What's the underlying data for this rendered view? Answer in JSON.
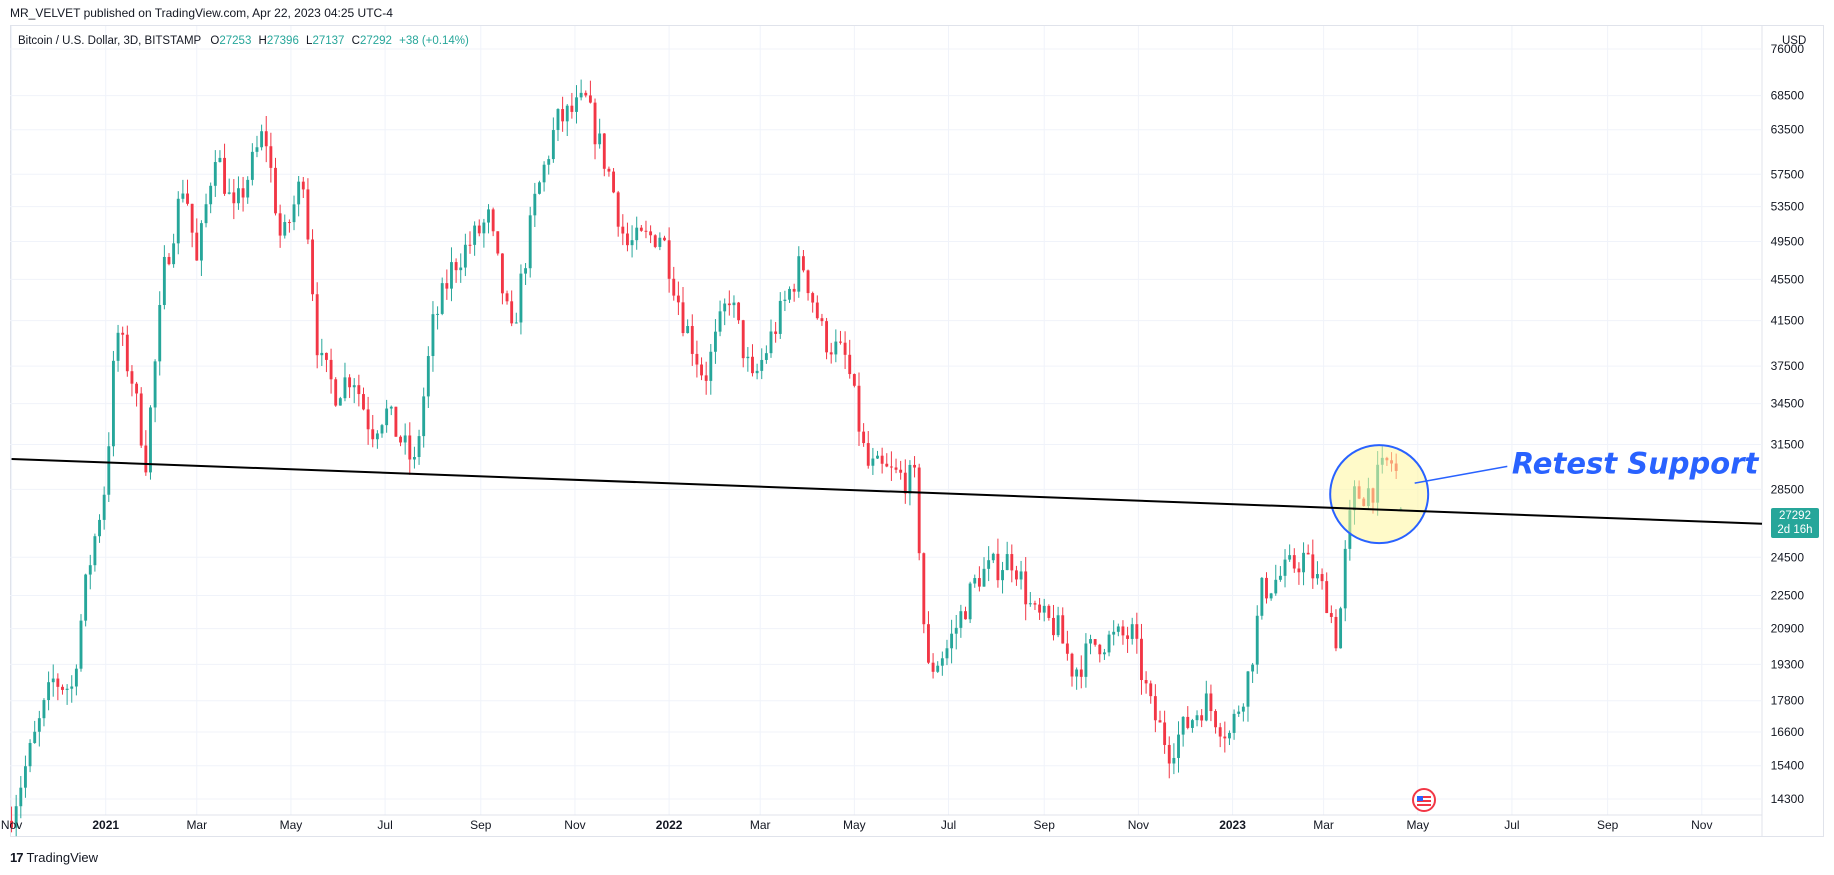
{
  "header": {
    "publish_line": "MR_VELVET published on TradingView.com, Apr 22, 2023 04:25 UTC-4"
  },
  "legend": {
    "symbol": "Bitcoin / U.S. Dollar, 3D, BITSTAMP",
    "o_label": "O",
    "o_value": "27253",
    "h_label": "H",
    "h_value": "27396",
    "l_label": "L",
    "l_value": "27137",
    "c_label": "C",
    "c_value": "27292",
    "change": "+38 (+0.14%)"
  },
  "currency": "USD",
  "price_tag": {
    "price": "27292",
    "countdown": "2d 16h"
  },
  "annotation": {
    "text": "Retest Support"
  },
  "brand": {
    "name": "TradingView",
    "logo_glyph": "17"
  },
  "colors": {
    "up": "#26a69a",
    "down": "#f23645",
    "annotation": "#2962ff",
    "highlight": "#fff59d",
    "support_line": "#000000"
  },
  "chart_data": {
    "type": "candlestick",
    "title": "Bitcoin / U.S. Dollar, 3D, BITSTAMP",
    "ylabel": "USD",
    "y_scale": "log",
    "ylim": [
      13800,
      80000
    ],
    "y_ticks": [
      76000,
      68500,
      63500,
      57500,
      53500,
      49500,
      45500,
      41500,
      37500,
      34500,
      31500,
      28500,
      24500,
      22500,
      20900,
      19300,
      17800,
      16600,
      15400,
      14300
    ],
    "x_ticks": [
      {
        "label": "Nov",
        "date": "2020-11-01"
      },
      {
        "label": "2021",
        "date": "2021-01-01",
        "bold": true
      },
      {
        "label": "Mar",
        "date": "2021-03-01"
      },
      {
        "label": "May",
        "date": "2021-05-01"
      },
      {
        "label": "Jul",
        "date": "2021-07-01"
      },
      {
        "label": "Sep",
        "date": "2021-09-01"
      },
      {
        "label": "Nov",
        "date": "2021-11-01"
      },
      {
        "label": "2022",
        "date": "2022-01-01",
        "bold": true
      },
      {
        "label": "Mar",
        "date": "2022-03-01"
      },
      {
        "label": "May",
        "date": "2022-05-01"
      },
      {
        "label": "Jul",
        "date": "2022-07-01"
      },
      {
        "label": "Sep",
        "date": "2022-09-01"
      },
      {
        "label": "Nov",
        "date": "2022-11-01"
      },
      {
        "label": "2023",
        "date": "2023-01-01",
        "bold": true
      },
      {
        "label": "Mar",
        "date": "2023-03-01"
      },
      {
        "label": "May",
        "date": "2023-05-01"
      },
      {
        "label": "Jul",
        "date": "2023-07-01"
      },
      {
        "label": "Sep",
        "date": "2023-09-01"
      },
      {
        "label": "Nov",
        "date": "2023-11-01"
      }
    ],
    "xlim": [
      "2020-10-31",
      "2023-12-10"
    ],
    "last_candle": {
      "date": "2023-04-21",
      "open": 27253,
      "high": 27396,
      "low": 27137,
      "close": 27292
    },
    "close_path": [
      [
        "2020-11-01",
        13900
      ],
      [
        "2020-11-15",
        16200
      ],
      [
        "2020-11-28",
        18600
      ],
      [
        "2020-12-10",
        18300
      ],
      [
        "2020-12-20",
        23500
      ],
      [
        "2021-01-01",
        29000
      ],
      [
        "2021-01-08",
        40800
      ],
      [
        "2021-01-18",
        36500
      ],
      [
        "2021-01-27",
        30500
      ],
      [
        "2021-02-08",
        46500
      ],
      [
        "2021-02-21",
        57000
      ],
      [
        "2021-03-01",
        47000
      ],
      [
        "2021-03-13",
        61000
      ],
      [
        "2021-03-25",
        52500
      ],
      [
        "2021-04-14",
        63500
      ],
      [
        "2021-04-25",
        49000
      ],
      [
        "2021-05-09",
        57500
      ],
      [
        "2021-05-19",
        38000
      ],
      [
        "2021-05-30",
        35500
      ],
      [
        "2021-06-10",
        37000
      ],
      [
        "2021-06-22",
        32500
      ],
      [
        "2021-07-01",
        34000
      ],
      [
        "2021-07-20",
        30000
      ],
      [
        "2021-08-01",
        41000
      ],
      [
        "2021-08-14",
        47000
      ],
      [
        "2021-09-06",
        52000
      ],
      [
        "2021-09-21",
        40000
      ],
      [
        "2021-10-06",
        54000
      ],
      [
        "2021-10-20",
        64500
      ],
      [
        "2021-11-08",
        67500
      ],
      [
        "2021-11-24",
        57000
      ],
      [
        "2021-12-04",
        49000
      ],
      [
        "2021-12-27",
        50500
      ],
      [
        "2022-01-10",
        41800
      ],
      [
        "2022-01-24",
        36500
      ],
      [
        "2022-02-09",
        44000
      ],
      [
        "2022-02-24",
        36000
      ],
      [
        "2022-03-28",
        47500
      ],
      [
        "2022-04-11",
        40000
      ],
      [
        "2022-04-26",
        38000
      ],
      [
        "2022-05-09",
        30000
      ],
      [
        "2022-05-25",
        29500
      ],
      [
        "2022-06-10",
        29000
      ],
      [
        "2022-06-14",
        22000
      ],
      [
        "2022-06-18",
        19000
      ],
      [
        "2022-06-30",
        20000
      ],
      [
        "2022-07-20",
        23500
      ],
      [
        "2022-08-12",
        24500
      ],
      [
        "2022-08-25",
        21500
      ],
      [
        "2022-09-09",
        21000
      ],
      [
        "2022-09-20",
        19000
      ],
      [
        "2022-10-05",
        20300
      ],
      [
        "2022-10-28",
        20600
      ],
      [
        "2022-11-09",
        17500
      ],
      [
        "2022-11-21",
        16000
      ],
      [
        "2022-12-14",
        17800
      ],
      [
        "2022-12-30",
        16500
      ],
      [
        "2023-01-12",
        19000
      ],
      [
        "2023-01-20",
        22700
      ],
      [
        "2023-02-16",
        24500
      ],
      [
        "2023-03-03",
        22400
      ],
      [
        "2023-03-10",
        20200
      ],
      [
        "2023-03-15",
        24500
      ],
      [
        "2023-03-20",
        28000
      ],
      [
        "2023-04-01",
        28500
      ],
      [
        "2023-04-13",
        30500
      ],
      [
        "2023-04-17",
        29500
      ],
      [
        "2023-04-21",
        27292
      ]
    ],
    "lines": [
      {
        "kind": "support_trendline",
        "start": {
          "date": "2020-11-01",
          "price": 30500
        },
        "end": {
          "date": "2023-12-10",
          "price": 26400
        }
      },
      {
        "kind": "annotation_pointer",
        "start": {
          "date": "2023-04-29",
          "price": 28900
        },
        "end": {
          "date": "2023-06-28",
          "price": 30000
        }
      }
    ],
    "highlight_circle": {
      "center": {
        "date": "2023-04-06",
        "price": 28200
      }
    },
    "annotations": [
      {
        "text": "Retest Support",
        "date": "2023-07-01",
        "price": 30200
      }
    ]
  }
}
